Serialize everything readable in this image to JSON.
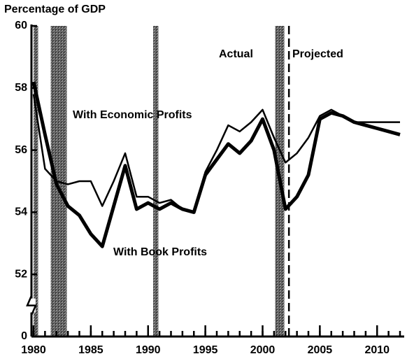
{
  "chart_data": {
    "type": "line",
    "title": "Percentage of GDP",
    "annotations": [
      "Actual",
      "Projected",
      "With Economic Profits",
      "With Book Profits"
    ],
    "x": [
      1980,
      1981,
      1982,
      1983,
      1984,
      1985,
      1986,
      1987,
      1988,
      1989,
      1990,
      1991,
      1992,
      1993,
      1994,
      1995,
      1996,
      1997,
      1998,
      1999,
      2000,
      2001,
      2002,
      2003,
      2004,
      2005,
      2006,
      2007,
      2008,
      2009,
      2010,
      2011,
      2012
    ],
    "series": [
      {
        "name": "With Economic Profits",
        "color": "#000000",
        "width": 2.5,
        "values": [
          57.8,
          55.4,
          55.0,
          54.9,
          55.0,
          55.0,
          54.2,
          55.0,
          55.9,
          54.5,
          54.5,
          54.3,
          54.4,
          54.1,
          54.0,
          55.3,
          56.0,
          56.8,
          56.6,
          56.9,
          57.3,
          56.4,
          55.6,
          55.9,
          56.4,
          57.1,
          57.3,
          57.1,
          56.9,
          56.9,
          56.9,
          56.9,
          56.9
        ]
      },
      {
        "name": "With Book Profits",
        "color": "#000000",
        "width": 5,
        "values": [
          58.2,
          56.5,
          54.9,
          54.2,
          53.9,
          53.3,
          52.9,
          54.2,
          55.5,
          54.1,
          54.3,
          54.1,
          54.3,
          54.1,
          54.0,
          55.2,
          55.7,
          56.2,
          55.9,
          56.3,
          57.0,
          56.0,
          54.1,
          54.5,
          55.2,
          57.0,
          57.2,
          57.1,
          56.9,
          56.8,
          56.7,
          56.6,
          56.5
        ]
      }
    ],
    "shaded_periods": [
      [
        1980.0,
        1980.4
      ],
      [
        1981.5,
        1982.9
      ],
      [
        1990.45,
        1990.9
      ],
      [
        2001.1,
        2001.9
      ]
    ],
    "projection_start": 2002.3,
    "xlim": [
      1980,
      2012
    ],
    "xticks": [
      1980,
      1985,
      1990,
      1995,
      2000,
      2005,
      2010
    ],
    "xticks_minor": [
      1980,
      1981,
      1982,
      1983,
      1984,
      1985,
      1986,
      1987,
      1988,
      1989,
      1990,
      1991,
      1992,
      1993,
      1994,
      1995,
      1996,
      1997,
      1998,
      1999,
      2000,
      2001,
      2002,
      2003,
      2004,
      2005,
      2006,
      2007,
      2008,
      2009,
      2010,
      2011,
      2012
    ],
    "ylim": [
      0,
      60
    ],
    "yticks": [
      0,
      52,
      54,
      56,
      58,
      60
    ],
    "axis_break": true
  }
}
